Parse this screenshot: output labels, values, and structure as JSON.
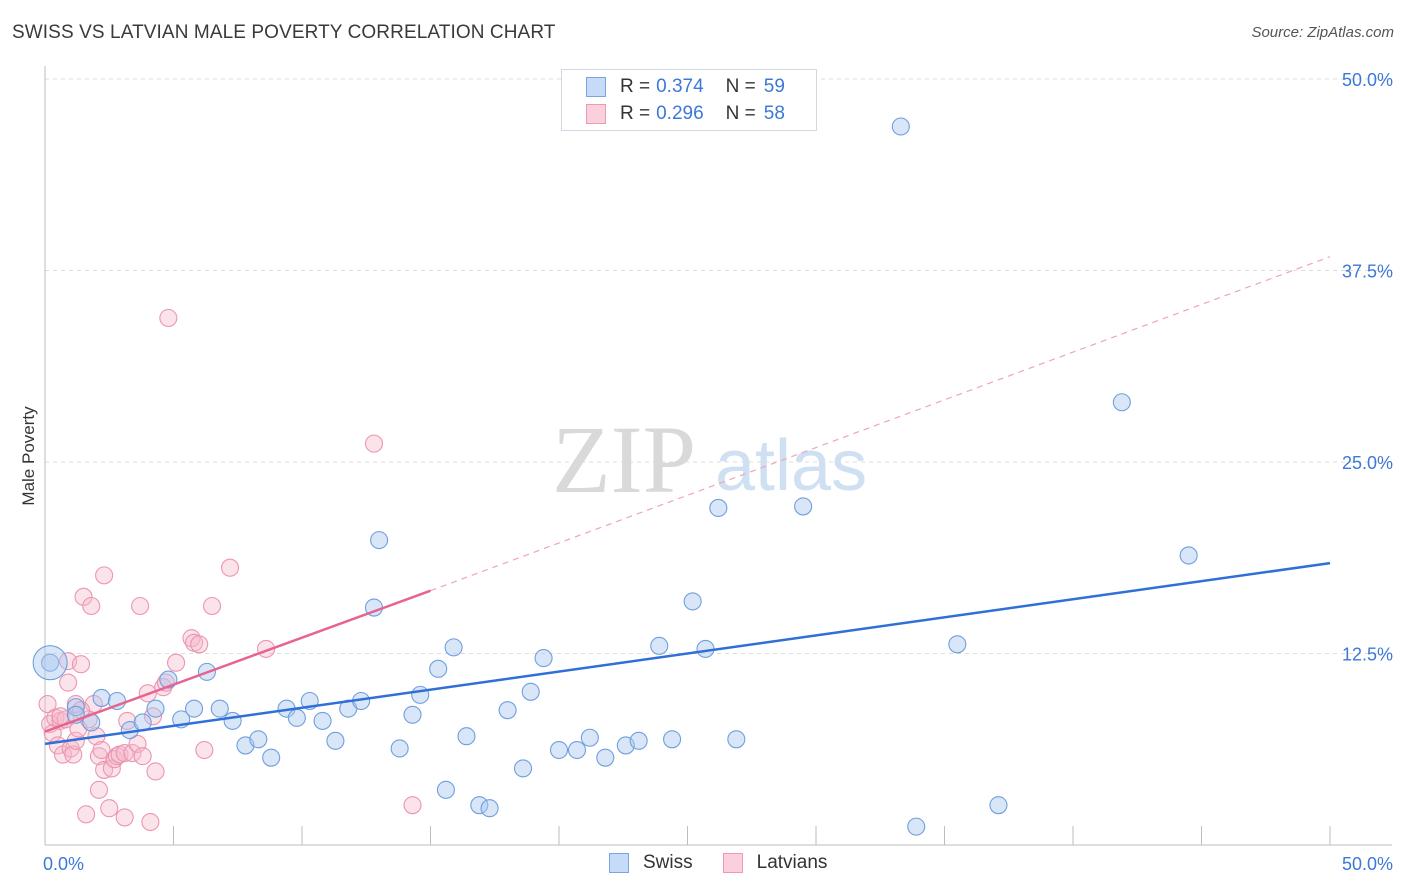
{
  "header": {
    "title": "SWISS VS LATVIAN MALE POVERTY CORRELATION CHART",
    "source": "Source: ZipAtlas.com"
  },
  "legend": {
    "swiss": {
      "r_label": "R =",
      "r_value": "0.374",
      "n_label": "N =",
      "n_value": "59"
    },
    "latvians": {
      "r_label": "R =",
      "r_value": "0.296",
      "n_label": "N =",
      "n_value": "58"
    }
  },
  "bottom_legend": {
    "swiss": "Swiss",
    "latvians": "Latvians"
  },
  "watermark": {
    "zip": "ZIP",
    "atlas": "atlas"
  },
  "chart_data": {
    "type": "scatter",
    "title": "SWISS VS LATVIAN MALE POVERTY CORRELATION CHART",
    "xlabel": "",
    "ylabel": "Male Poverty",
    "xlim": [
      0,
      50
    ],
    "ylim": [
      0,
      50
    ],
    "x_tick_labels": [
      "0.0%",
      "50.0%"
    ],
    "y_ticks": [
      12.5,
      25.0,
      37.5,
      50.0
    ],
    "y_tick_labels": [
      "12.5%",
      "25.0%",
      "37.5%",
      "50.0%"
    ],
    "grid": true,
    "legend_position": "top-center",
    "colors": {
      "swiss": "#a9c7f0",
      "swiss_line": "#2f6fd6",
      "latvians": "#f6b8cb",
      "latvians_line": "#e8638f"
    },
    "series": [
      {
        "name": "Swiss",
        "points": [
          [
            0.2,
            11.9
          ],
          [
            1.2,
            9.0
          ],
          [
            1.8,
            8.0
          ],
          [
            2.2,
            9.6
          ],
          [
            2.8,
            9.4
          ],
          [
            3.3,
            7.5
          ],
          [
            3.8,
            8.0
          ],
          [
            4.3,
            8.9
          ],
          [
            4.8,
            10.8
          ],
          [
            5.3,
            8.2
          ],
          [
            5.8,
            8.9
          ],
          [
            6.3,
            11.3
          ],
          [
            6.8,
            8.9
          ],
          [
            7.3,
            8.1
          ],
          [
            7.8,
            6.5
          ],
          [
            8.3,
            6.9
          ],
          [
            8.8,
            5.7
          ],
          [
            9.4,
            8.9
          ],
          [
            9.8,
            8.3
          ],
          [
            10.3,
            9.4
          ],
          [
            10.8,
            8.1
          ],
          [
            11.3,
            6.8
          ],
          [
            11.8,
            8.9
          ],
          [
            12.3,
            9.4
          ],
          [
            12.8,
            15.5
          ],
          [
            13.0,
            19.9
          ],
          [
            13.8,
            6.3
          ],
          [
            14.3,
            8.5
          ],
          [
            14.6,
            9.8
          ],
          [
            15.3,
            11.5
          ],
          [
            15.6,
            3.6
          ],
          [
            15.9,
            12.9
          ],
          [
            16.4,
            7.1
          ],
          [
            16.9,
            2.6
          ],
          [
            17.3,
            2.4
          ],
          [
            18.0,
            8.8
          ],
          [
            18.6,
            5.0
          ],
          [
            18.9,
            10.0
          ],
          [
            19.4,
            12.2
          ],
          [
            20.0,
            6.2
          ],
          [
            20.7,
            6.2
          ],
          [
            21.2,
            7.0
          ],
          [
            21.8,
            5.7
          ],
          [
            22.6,
            6.5
          ],
          [
            23.1,
            6.8
          ],
          [
            23.9,
            13.0
          ],
          [
            24.4,
            6.9
          ],
          [
            25.2,
            15.9
          ],
          [
            25.7,
            12.8
          ],
          [
            26.2,
            22.0
          ],
          [
            26.9,
            6.9
          ],
          [
            29.5,
            22.1
          ],
          [
            33.3,
            46.9
          ],
          [
            33.9,
            1.2
          ],
          [
            35.5,
            13.1
          ],
          [
            37.1,
            2.6
          ],
          [
            41.9,
            28.9
          ],
          [
            44.5,
            18.9
          ],
          [
            1.2,
            8.5
          ]
        ],
        "trend": {
          "x": [
            0,
            50
          ],
          "y": [
            6.6,
            18.4
          ]
        }
      },
      {
        "name": "Latvians",
        "points": [
          [
            0.1,
            9.2
          ],
          [
            0.2,
            7.9
          ],
          [
            0.3,
            7.3
          ],
          [
            0.4,
            8.3
          ],
          [
            0.5,
            6.5
          ],
          [
            0.6,
            8.1
          ],
          [
            0.7,
            5.9
          ],
          [
            0.8,
            8.2
          ],
          [
            0.9,
            12.0
          ],
          [
            0.9,
            10.6
          ],
          [
            1.0,
            6.3
          ],
          [
            1.1,
            5.9
          ],
          [
            1.2,
            9.2
          ],
          [
            1.2,
            6.8
          ],
          [
            1.3,
            7.6
          ],
          [
            1.4,
            11.8
          ],
          [
            1.5,
            16.2
          ],
          [
            1.6,
            2.0
          ],
          [
            1.7,
            8.2
          ],
          [
            1.8,
            15.6
          ],
          [
            1.9,
            9.2
          ],
          [
            2.0,
            7.1
          ],
          [
            2.1,
            5.8
          ],
          [
            2.1,
            3.6
          ],
          [
            2.2,
            6.2
          ],
          [
            2.3,
            4.9
          ],
          [
            2.3,
            17.6
          ],
          [
            2.5,
            2.4
          ],
          [
            2.6,
            5.0
          ],
          [
            2.7,
            5.6
          ],
          [
            2.8,
            5.8
          ],
          [
            2.9,
            5.9
          ],
          [
            3.1,
            1.8
          ],
          [
            3.1,
            6.0
          ],
          [
            3.2,
            8.1
          ],
          [
            3.4,
            6.0
          ],
          [
            3.6,
            6.6
          ],
          [
            3.7,
            15.6
          ],
          [
            3.8,
            5.8
          ],
          [
            4.0,
            9.9
          ],
          [
            4.1,
            1.5
          ],
          [
            4.2,
            8.4
          ],
          [
            4.3,
            4.8
          ],
          [
            4.6,
            10.3
          ],
          [
            4.8,
            34.4
          ],
          [
            5.1,
            11.9
          ],
          [
            5.7,
            13.5
          ],
          [
            5.8,
            13.2
          ],
          [
            6.0,
            13.1
          ],
          [
            6.2,
            6.2
          ],
          [
            6.5,
            15.6
          ],
          [
            7.2,
            18.1
          ],
          [
            8.6,
            12.8
          ],
          [
            12.8,
            26.2
          ],
          [
            14.3,
            2.6
          ],
          [
            0.6,
            8.4
          ],
          [
            1.4,
            8.8
          ],
          [
            4.7,
            10.6
          ]
        ],
        "trend": {
          "x": [
            0,
            15
          ],
          "y": [
            7.4,
            16.6
          ]
        },
        "trend_extension": {
          "x": [
            15,
            50
          ],
          "y": [
            16.6,
            38.4
          ]
        }
      }
    ]
  }
}
